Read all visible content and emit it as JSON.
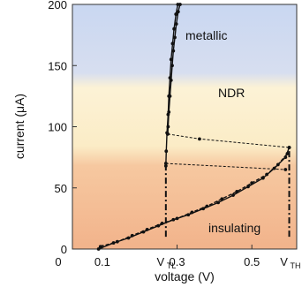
{
  "chart_data": {
    "type": "line",
    "xlabel": "voltage (V)",
    "ylabel": "current (μA)",
    "xlim": [
      0.02,
      0.62
    ],
    "ylim": [
      0,
      200
    ],
    "x_ticks": [
      {
        "value": 0.1,
        "label": "0.1"
      },
      {
        "value": 0.3,
        "label": "0.3"
      },
      {
        "value": 0.5,
        "label": "0.5"
      }
    ],
    "x_tick_zero_label": "0",
    "y_ticks": [
      0,
      50,
      100,
      150,
      200
    ],
    "regions": [
      {
        "label": "metallic",
        "y_range": [
          140,
          200
        ],
        "color": "#c9d7f1"
      },
      {
        "label": "NDR",
        "y_range": [
          70,
          140
        ],
        "color": "#fbeecb"
      },
      {
        "label": "insulating",
        "y_range": [
          0,
          70
        ],
        "color": "#f3b890"
      }
    ],
    "threshold_markers": [
      {
        "name": "V",
        "sub": "TL",
        "x": 0.27,
        "y_range": [
          10,
          68
        ]
      },
      {
        "name": "V",
        "sub": "TH",
        "x": 0.6,
        "y_range": [
          10,
          83
        ]
      }
    ],
    "series": [
      {
        "line": "solid",
        "x": [
          0.09,
          0.13,
          0.17,
          0.21,
          0.25,
          0.29,
          0.33,
          0.37,
          0.41,
          0.45,
          0.49,
          0.53,
          0.56,
          0.59,
          0.6
        ],
        "y": [
          0,
          5,
          9,
          14,
          19,
          24,
          28,
          33,
          38,
          44,
          51,
          58,
          66,
          75,
          83
        ]
      },
      {
        "line": "dashed",
        "x": [
          0.095,
          0.14,
          0.18,
          0.22,
          0.26,
          0.3,
          0.34,
          0.38,
          0.42,
          0.46,
          0.5,
          0.54,
          0.57,
          0.595
        ],
        "y": [
          2,
          6,
          11,
          16,
          21,
          25,
          30,
          35,
          41,
          47,
          54,
          61,
          69,
          78
        ]
      },
      {
        "line": "solid",
        "x": [
          0.27,
          0.271,
          0.273,
          0.276,
          0.278,
          0.281,
          0.284,
          0.288,
          0.292,
          0.297,
          0.302
        ],
        "y": [
          68,
          80,
          95,
          110,
          125,
          140,
          155,
          168,
          180,
          192,
          200
        ]
      },
      {
        "line": "solid",
        "x": [
          0.275,
          0.276,
          0.278,
          0.281,
          0.284,
          0.287,
          0.29,
          0.294,
          0.298,
          0.303,
          0.308
        ],
        "y": [
          94,
          100,
          112,
          125,
          138,
          150,
          162,
          173,
          184,
          194,
          200
        ]
      },
      {
        "line": "dotted",
        "x": [
          0.275,
          0.36,
          0.6
        ],
        "y": [
          94,
          90,
          83
        ]
      },
      {
        "line": "dotted",
        "x": [
          0.27,
          0.59
        ],
        "y": [
          70,
          65
        ]
      }
    ]
  }
}
